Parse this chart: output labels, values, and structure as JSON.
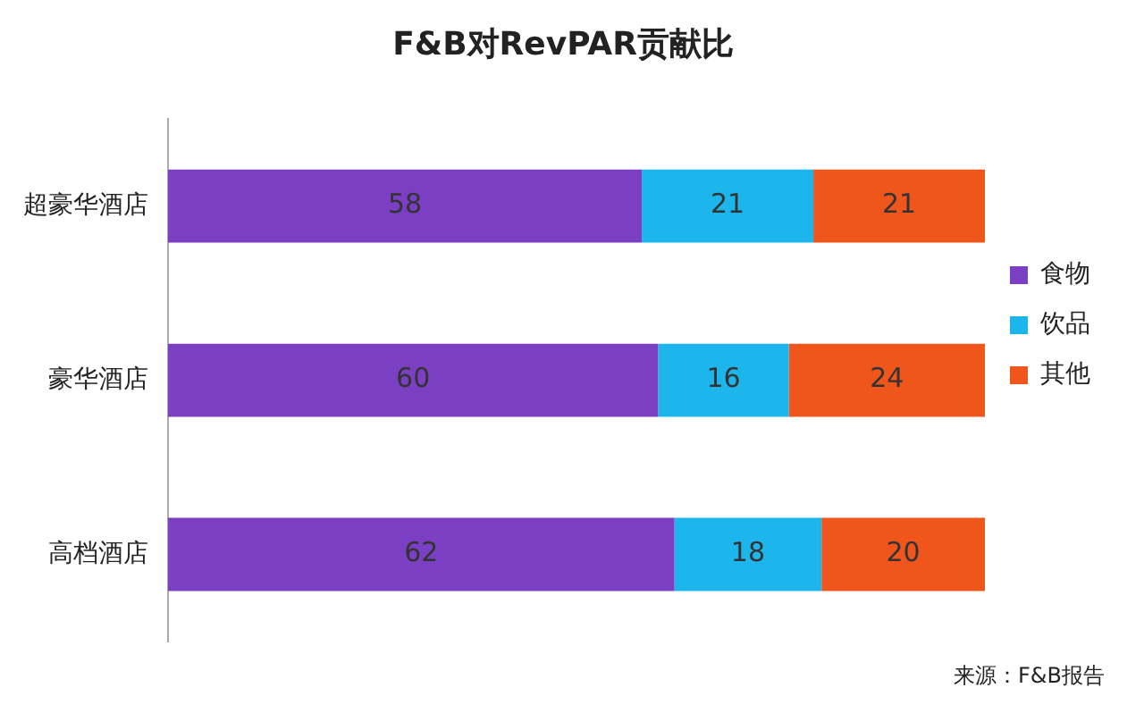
{
  "chart_data": {
    "type": "bar",
    "orientation": "horizontal",
    "stacked": true,
    "title": "F&B对RevPAR贡献比",
    "categories": [
      "超豪华酒店",
      "豪华酒店",
      "高档酒店"
    ],
    "series": [
      {
        "name": "食物",
        "color": "#7b3fc4",
        "values": [
          58,
          60,
          62
        ]
      },
      {
        "name": "饮品",
        "color": "#1cb5ec",
        "values": [
          21,
          16,
          18
        ]
      },
      {
        "name": "其他",
        "color": "#f0561c",
        "values": [
          21,
          24,
          20
        ]
      }
    ],
    "data_labels": true,
    "legend": "right",
    "annotations": [
      "来源：F&B报告"
    ]
  }
}
